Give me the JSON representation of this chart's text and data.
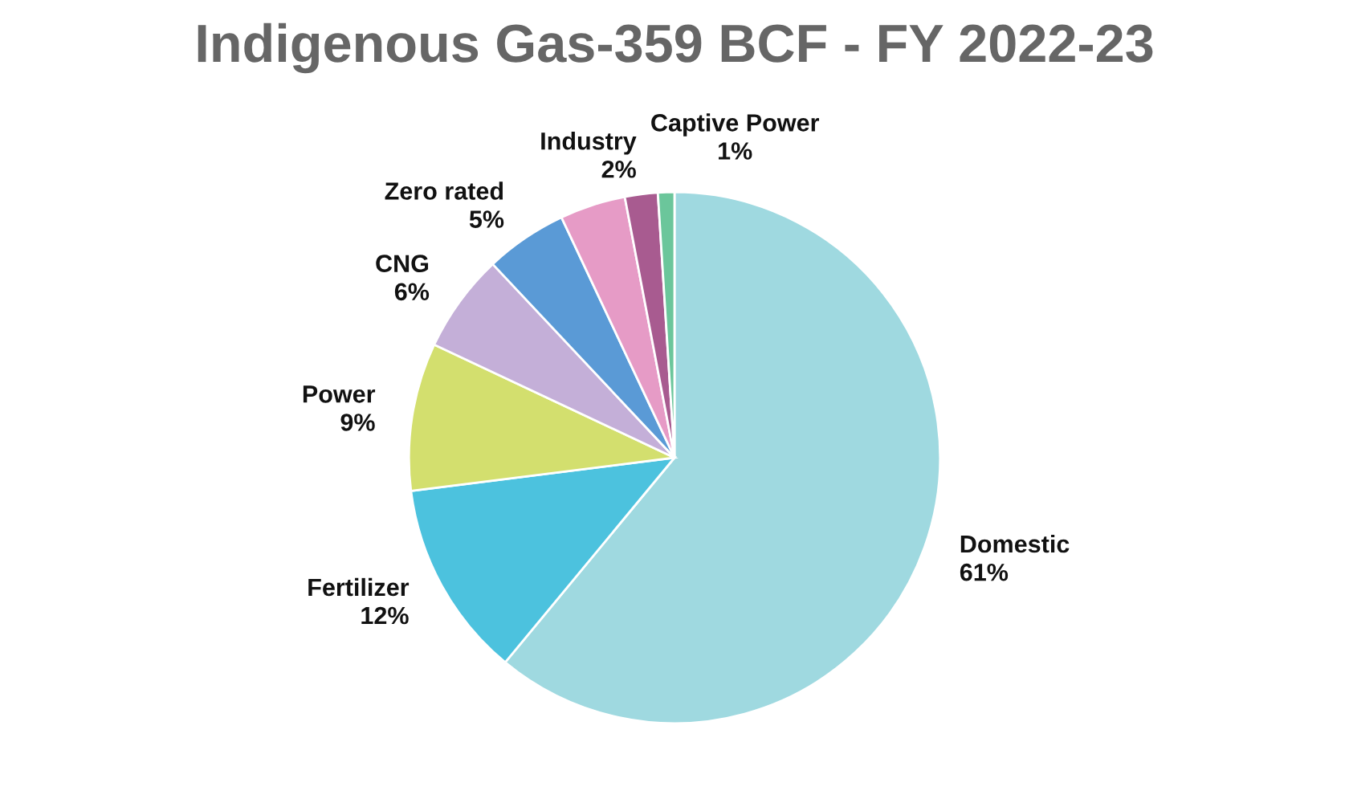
{
  "chart_data": {
    "type": "pie",
    "title": "Indigenous Gas-359 BCF - FY 2022-23",
    "categories": [
      "Domestic",
      "Fertilizer",
      "Power",
      "CNG",
      "Zero rated",
      null,
      "Industry",
      "Captive Power"
    ],
    "values": [
      61,
      12,
      9,
      6,
      5,
      4,
      2,
      1
    ],
    "colors": [
      "#9fd9e0",
      "#4cc2de",
      "#d3df6e",
      "#c4afd8",
      "#5a9ad6",
      "#e69bc6",
      "#a85b90",
      "#6bc69b"
    ],
    "value_labels": [
      "61%",
      "12%",
      "9%",
      "6%",
      "5%",
      null,
      "2%",
      "1%"
    ]
  }
}
